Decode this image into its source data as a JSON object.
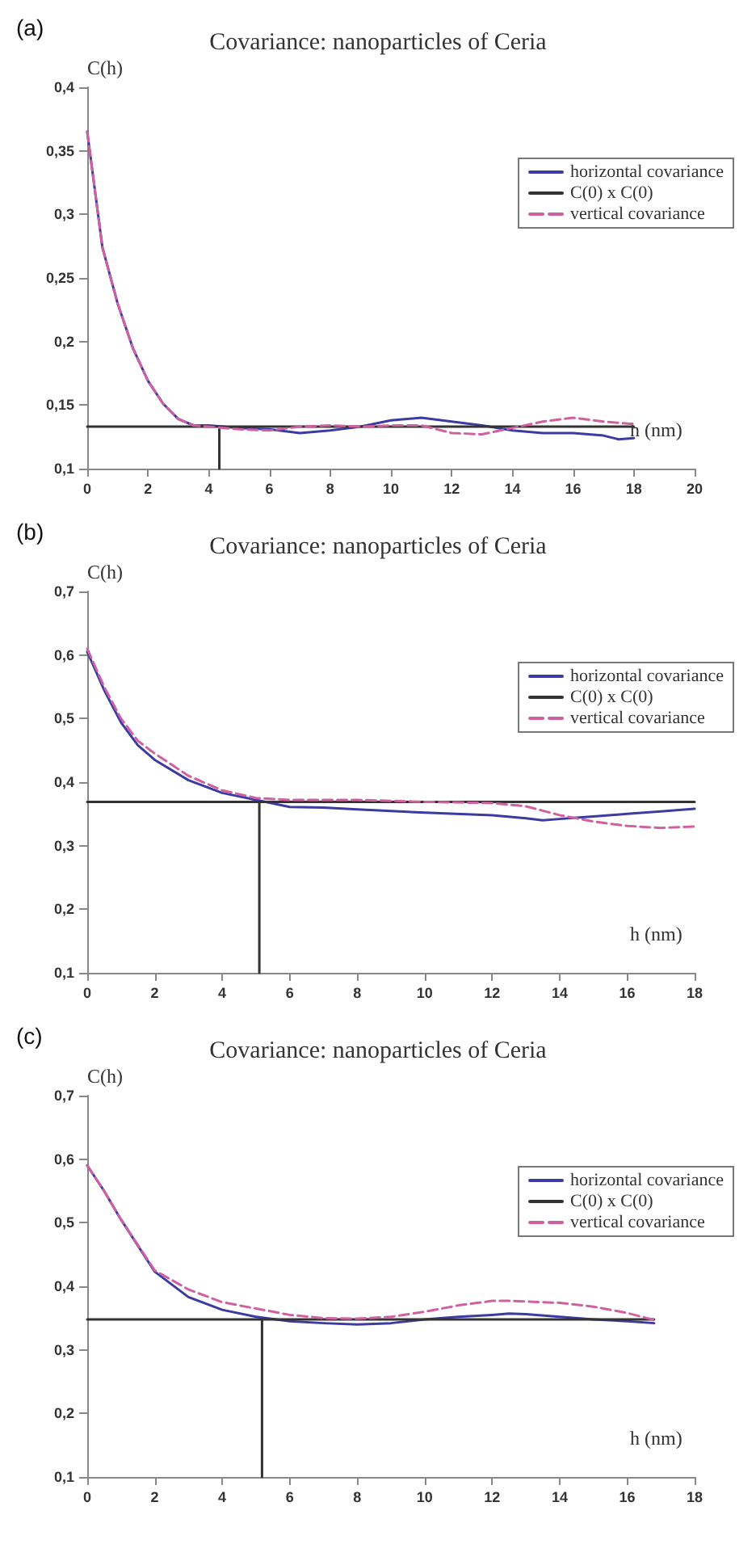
{
  "chart_data": [
    {
      "type": "line",
      "title": "Covariance: nanoparticles of Ceria",
      "xlabel": "h (nm)",
      "ylabel": "C(h)",
      "annotations": [
        "(a)"
      ],
      "x": [
        0,
        0.5,
        1,
        1.5,
        2,
        2.5,
        3,
        3.5,
        4,
        5,
        6,
        7,
        8,
        9,
        10,
        11,
        12,
        13,
        14,
        15,
        16,
        17,
        17.5,
        18
      ],
      "series": [
        {
          "name": "horizontal covariance",
          "color": "#3b3ba3",
          "line_style": "solid",
          "values": [
            0.365,
            0.274,
            0.23,
            0.195,
            0.169,
            0.151,
            0.139,
            0.134,
            0.134,
            0.132,
            0.131,
            0.128,
            0.13,
            0.133,
            0.138,
            0.14,
            0.137,
            0.134,
            0.13,
            0.128,
            0.128,
            0.126,
            0.123,
            0.124
          ]
        },
        {
          "name": "C(0) x C(0)",
          "color": "#333333",
          "line_style": "solid",
          "x": [
            0,
            4.35,
            4.35,
            4.35,
            18
          ],
          "values": [
            0.133,
            0.133,
            0.1,
            0.133,
            0.133
          ]
        },
        {
          "name": "vertical covariance",
          "color": "#d0609f",
          "line_style": "dashed",
          "values": [
            0.365,
            0.274,
            0.23,
            0.195,
            0.169,
            0.151,
            0.139,
            0.134,
            0.133,
            0.131,
            0.13,
            0.133,
            0.134,
            0.133,
            0.134,
            0.134,
            0.128,
            0.127,
            0.132,
            0.137,
            0.14,
            0.137,
            0.136,
            0.135
          ]
        }
      ],
      "xlim": [
        0,
        20
      ],
      "xticks": [
        0,
        2,
        4,
        6,
        8,
        10,
        12,
        14,
        16,
        18,
        20
      ],
      "ylim": [
        0.1,
        0.4
      ],
      "yticks": [
        {
          "value": 0.1,
          "label": "0,1"
        },
        {
          "value": 0.15,
          "label": "0,15"
        },
        {
          "value": 0.2,
          "label": "0,2"
        },
        {
          "value": 0.25,
          "label": "0,25"
        },
        {
          "value": 0.3,
          "label": "0,3"
        },
        {
          "value": 0.35,
          "label": "0,35"
        },
        {
          "value": 0.4,
          "label": "0,4"
        }
      ],
      "grid": false,
      "legend": "top right",
      "marker": "none"
    },
    {
      "type": "line",
      "title": "Covariance: nanoparticles of Ceria",
      "xlabel": "h (nm)",
      "ylabel": "C(h)",
      "annotations": [
        "(b)"
      ],
      "x": [
        0,
        0.5,
        1,
        1.5,
        2,
        3,
        4,
        5,
        6,
        7,
        8,
        10,
        12,
        13,
        13.5,
        14,
        14.5,
        15,
        16,
        17,
        18
      ],
      "series": [
        {
          "name": "horizontal covariance",
          "color": "#3b3ba3",
          "line_style": "solid",
          "values": [
            0.605,
            0.545,
            0.494,
            0.458,
            0.435,
            0.403,
            0.383,
            0.372,
            0.361,
            0.36,
            0.357,
            0.352,
            0.348,
            0.343,
            0.34,
            0.342,
            0.344,
            0.346,
            0.35,
            0.354,
            0.358
          ]
        },
        {
          "name": "C(0) x C(0)",
          "color": "#333333",
          "line_style": "solid",
          "x": [
            0,
            5.1,
            5.1,
            5.1,
            18
          ],
          "values": [
            0.369,
            0.369,
            0.1,
            0.369,
            0.369
          ]
        },
        {
          "name": "vertical covariance",
          "color": "#d0609f",
          "line_style": "dashed",
          "values": [
            0.61,
            0.55,
            0.5,
            0.465,
            0.445,
            0.41,
            0.387,
            0.375,
            0.372,
            0.372,
            0.372,
            0.369,
            0.367,
            0.362,
            0.355,
            0.348,
            0.343,
            0.338,
            0.331,
            0.328,
            0.33
          ]
        }
      ],
      "xlim": [
        0,
        18
      ],
      "xticks": [
        0,
        2,
        4,
        6,
        8,
        10,
        12,
        14,
        16,
        18
      ],
      "ylim": [
        0.1,
        0.7
      ],
      "yticks": [
        {
          "value": 0.1,
          "label": "0,1"
        },
        {
          "value": 0.2,
          "label": "0,2"
        },
        {
          "value": 0.3,
          "label": "0,3"
        },
        {
          "value": 0.4,
          "label": "0,4"
        },
        {
          "value": 0.5,
          "label": "0,5"
        },
        {
          "value": 0.6,
          "label": "0,6"
        },
        {
          "value": 0.7,
          "label": "0,7"
        }
      ],
      "grid": false,
      "legend": "top right",
      "marker": "none"
    },
    {
      "type": "line",
      "title": "Covariance: nanoparticles of Ceria",
      "xlabel": "h (nm)",
      "ylabel": "C(h)",
      "annotations": [
        "(c)"
      ],
      "x": [
        0,
        0.5,
        1,
        2,
        3,
        4,
        5,
        6,
        7,
        8,
        9,
        10,
        11,
        12,
        12.5,
        13,
        14,
        15,
        16,
        16.8
      ],
      "series": [
        {
          "name": "horizontal covariance",
          "color": "#3b3ba3",
          "line_style": "solid",
          "values": [
            0.59,
            0.55,
            0.505,
            0.423,
            0.383,
            0.363,
            0.352,
            0.345,
            0.342,
            0.34,
            0.342,
            0.348,
            0.352,
            0.355,
            0.357,
            0.356,
            0.352,
            0.348,
            0.345,
            0.342
          ]
        },
        {
          "name": "C(0) x C(0)",
          "color": "#333333",
          "line_style": "solid",
          "x": [
            0,
            5.18,
            5.18,
            5.18,
            16.8
          ],
          "values": [
            0.348,
            0.348,
            0.1,
            0.348,
            0.348
          ]
        },
        {
          "name": "vertical covariance",
          "color": "#d0609f",
          "line_style": "dashed",
          "values": [
            0.59,
            0.55,
            0.505,
            0.425,
            0.395,
            0.375,
            0.365,
            0.355,
            0.35,
            0.349,
            0.352,
            0.36,
            0.37,
            0.377,
            0.377,
            0.376,
            0.374,
            0.368,
            0.358,
            0.347
          ]
        }
      ],
      "xlim": [
        0,
        18
      ],
      "xticks": [
        0,
        2,
        4,
        6,
        8,
        10,
        12,
        14,
        16,
        18
      ],
      "ylim": [
        0.1,
        0.7
      ],
      "yticks": [
        {
          "value": 0.1,
          "label": "0,1"
        },
        {
          "value": 0.2,
          "label": "0,2"
        },
        {
          "value": 0.3,
          "label": "0,3"
        },
        {
          "value": 0.4,
          "label": "0,4"
        },
        {
          "value": 0.5,
          "label": "0,5"
        },
        {
          "value": 0.6,
          "label": "0,6"
        },
        {
          "value": 0.7,
          "label": "0,7"
        }
      ],
      "grid": false,
      "legend": "top right",
      "marker": "none"
    }
  ]
}
